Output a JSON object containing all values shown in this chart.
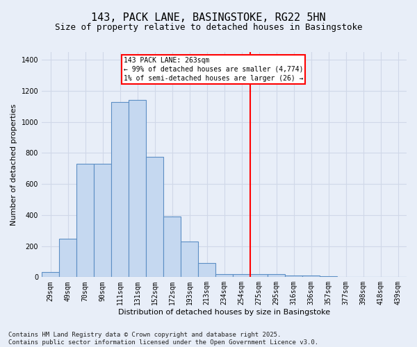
{
  "title1": "143, PACK LANE, BASINGSTOKE, RG22 5HN",
  "title2": "Size of property relative to detached houses in Basingstoke",
  "xlabel": "Distribution of detached houses by size in Basingstoke",
  "ylabel": "Number of detached properties",
  "categories": [
    "29sqm",
    "49sqm",
    "70sqm",
    "90sqm",
    "111sqm",
    "131sqm",
    "152sqm",
    "172sqm",
    "193sqm",
    "213sqm",
    "234sqm",
    "254sqm",
    "275sqm",
    "295sqm",
    "316sqm",
    "336sqm",
    "357sqm",
    "377sqm",
    "398sqm",
    "418sqm",
    "439sqm"
  ],
  "values": [
    35,
    248,
    728,
    728,
    1130,
    1140,
    775,
    390,
    228,
    90,
    20,
    20,
    20,
    20,
    10,
    10,
    5,
    0,
    0,
    0,
    0
  ],
  "bar_color": "#c5d8f0",
  "bar_edge_color": "#5b8ec4",
  "vline_color": "red",
  "annotation_text": "143 PACK LANE: 263sqm\n← 99% of detached houses are smaller (4,774)\n1% of semi-detached houses are larger (26) →",
  "footer": "Contains HM Land Registry data © Crown copyright and database right 2025.\nContains public sector information licensed under the Open Government Licence v3.0.",
  "ylim": [
    0,
    1450
  ],
  "yticks": [
    0,
    200,
    400,
    600,
    800,
    1000,
    1200,
    1400
  ],
  "background_color": "#e8eef8",
  "grid_color": "#d0d8e8",
  "title1_fontsize": 11,
  "title2_fontsize": 9,
  "xlabel_fontsize": 8,
  "ylabel_fontsize": 8,
  "tick_fontsize": 7,
  "footer_fontsize": 6.5,
  "vline_pos": 11.5
}
